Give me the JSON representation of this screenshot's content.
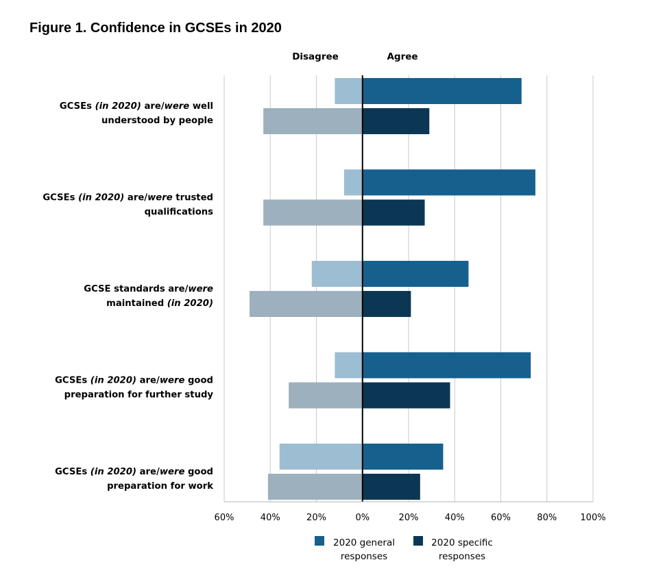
{
  "figure": {
    "title": "Figure 1. Confidence in GCSEs in 2020"
  },
  "chart_data": {
    "type": "bar",
    "orientation": "horizontal-diverging",
    "direction_labels": {
      "negative": "Disagree",
      "positive": "Agree"
    },
    "categories": [
      [
        {
          "t": "GCSEs ",
          "i": false
        },
        {
          "t": "(in 2020)",
          "i": true
        },
        {
          "t": " are/",
          "i": false
        },
        {
          "t": "were",
          "i": true
        },
        {
          "t": " well",
          "i": false
        }
      ],
      [
        {
          "t": "understood by people",
          "i": false
        }
      ],
      [
        {
          "t": "GCSEs ",
          "i": false
        },
        {
          "t": "(in 2020)",
          "i": true
        },
        {
          "t": " are/",
          "i": false
        },
        {
          "t": "were",
          "i": true
        },
        {
          "t": " trusted",
          "i": false
        }
      ],
      [
        {
          "t": "qualifications",
          "i": false
        }
      ],
      [
        {
          "t": "GCSE standards are/",
          "i": false
        },
        {
          "t": "were",
          "i": true
        }
      ],
      [
        {
          "t": "maintained ",
          "i": false
        },
        {
          "t": "(in 2020)",
          "i": true
        }
      ],
      [
        {
          "t": "GCSEs ",
          "i": false
        },
        {
          "t": "(in 2020)",
          "i": true
        },
        {
          "t": " are/",
          "i": false
        },
        {
          "t": "were",
          "i": true
        },
        {
          "t": " good",
          "i": false
        }
      ],
      [
        {
          "t": "preparation for further study",
          "i": false
        }
      ],
      [
        {
          "t": "GCSEs ",
          "i": false
        },
        {
          "t": "(in 2020)",
          "i": true
        },
        {
          "t": " are/",
          "i": false
        },
        {
          "t": "were",
          "i": true
        },
        {
          "t": " good",
          "i": false
        }
      ],
      [
        {
          "t": "preparation for work",
          "i": false
        }
      ]
    ],
    "series": [
      {
        "name": "2020 general responses",
        "legend_lines": [
          "2020 general",
          "responses"
        ],
        "agree": [
          69,
          75,
          46,
          73,
          35
        ],
        "disagree": [
          12,
          8,
          22,
          12,
          36
        ],
        "agree_color": "#16608e",
        "disagree_color": "#9dbdd2"
      },
      {
        "name": "2020 specific responses",
        "legend_lines": [
          "2020 specific",
          "responses"
        ],
        "agree": [
          29,
          27,
          21,
          38,
          25
        ],
        "disagree": [
          43,
          43,
          49,
          32,
          41
        ],
        "agree_color": "#0b3755",
        "disagree_color": "#9db0bd"
      }
    ],
    "xlim": [
      -60,
      100
    ],
    "ticks": [
      -60,
      -40,
      -20,
      0,
      20,
      40,
      60,
      80,
      100
    ],
    "tick_labels": [
      "60%",
      "40%",
      "20%",
      "0%",
      "20%",
      "40%",
      "60%",
      "80%",
      "100%"
    ],
    "grid": true,
    "legend_position": "bottom-center"
  }
}
